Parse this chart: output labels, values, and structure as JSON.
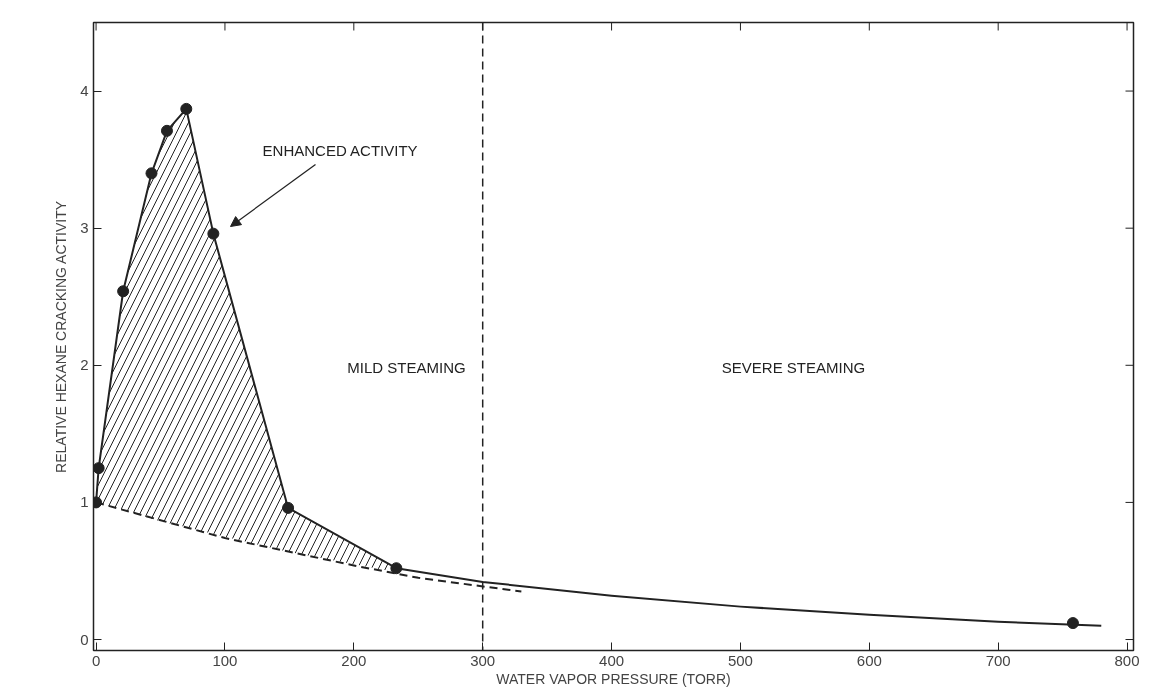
{
  "chart_data": {
    "type": "line",
    "xlabel": "WATER VAPOR PRESSURE (TORR)",
    "ylabel": "RELATIVE HEXANE CRACKING ACTIVITY",
    "xlim": [
      -2,
      805
    ],
    "ylim": [
      -0.08,
      4.5
    ],
    "xticks": [
      0,
      100,
      200,
      300,
      400,
      500,
      600,
      700,
      800
    ],
    "yticks": [
      0,
      1,
      2,
      3,
      4
    ],
    "grid": false,
    "series": [
      {
        "color": "#222222",
        "marker": "none",
        "line_style": "solid",
        "x": [
          0,
          2,
          21,
          43,
          55,
          70,
          91,
          149,
          233,
          300,
          400,
          500,
          600,
          700,
          780
        ],
        "values": [
          1.0,
          1.25,
          2.54,
          3.4,
          3.71,
          3.87,
          2.96,
          0.96,
          0.52,
          0.42,
          0.32,
          0.24,
          0.18,
          0.13,
          0.1
        ],
        "lower": [
          1.0,
          0.99,
          0.95,
          0.88,
          0.85,
          0.82,
          0.77,
          0.64,
          0.49,
          null,
          null,
          null,
          null,
          null,
          null
        ],
        "upper": [
          1.0,
          1.25,
          2.54,
          3.4,
          3.71,
          3.87,
          2.96,
          0.96,
          0.52,
          null,
          null,
          null,
          null,
          null,
          null
        ]
      },
      {
        "type": "line",
        "color": "#222222",
        "marker": "none",
        "line_style": "dashed",
        "x": [
          0,
          100,
          200,
          250,
          330
        ],
        "values": [
          1.0,
          0.74,
          0.54,
          0.45,
          0.35
        ]
      },
      {
        "type": "scatter",
        "color": "#222222",
        "marker": "circle",
        "x": [
          0,
          2,
          21,
          43,
          55,
          70,
          91,
          149,
          233,
          758
        ],
        "values": [
          1.0,
          1.25,
          2.54,
          3.4,
          3.71,
          3.87,
          2.96,
          0.96,
          0.52,
          0.12
        ]
      }
    ],
    "ref_lines": [
      {
        "axis": "x",
        "value": 300,
        "line_style": "dashed",
        "color": "#222222"
      }
    ],
    "annotations": [
      "ENHANCED ACTIVITY",
      "MILD STEAMING",
      "SEVERE STEAMING"
    ]
  }
}
